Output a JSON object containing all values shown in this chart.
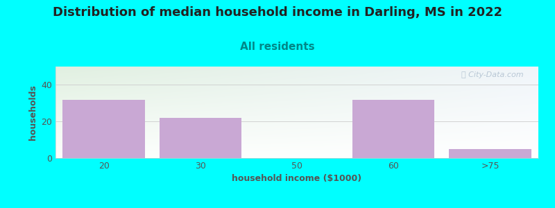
{
  "title": "Distribution of median household income in Darling, MS in 2022",
  "subtitle": "All residents",
  "xlabel": "household income ($1000)",
  "ylabel": "households",
  "categories": [
    "20",
    "30",
    "50",
    "60",
    ">75"
  ],
  "values": [
    32,
    22,
    0,
    32,
    5
  ],
  "bar_color": "#c9a8d4",
  "background_color": "#00ffff",
  "plot_bg_top_left": "#ddeedd",
  "plot_bg_top_right": "#f0f4f8",
  "plot_bg_bottom": "#ffffff",
  "ylim": [
    0,
    50
  ],
  "yticks": [
    0,
    20,
    40
  ],
  "title_fontsize": 13,
  "subtitle_fontsize": 11,
  "axis_label_fontsize": 9,
  "tick_fontsize": 9,
  "watermark": "ⓘ City-Data.com",
  "watermark_color": "#aabbcc",
  "title_color": "#222222",
  "subtitle_color": "#008888",
  "axis_label_color": "#555555",
  "tick_color": "#555555"
}
